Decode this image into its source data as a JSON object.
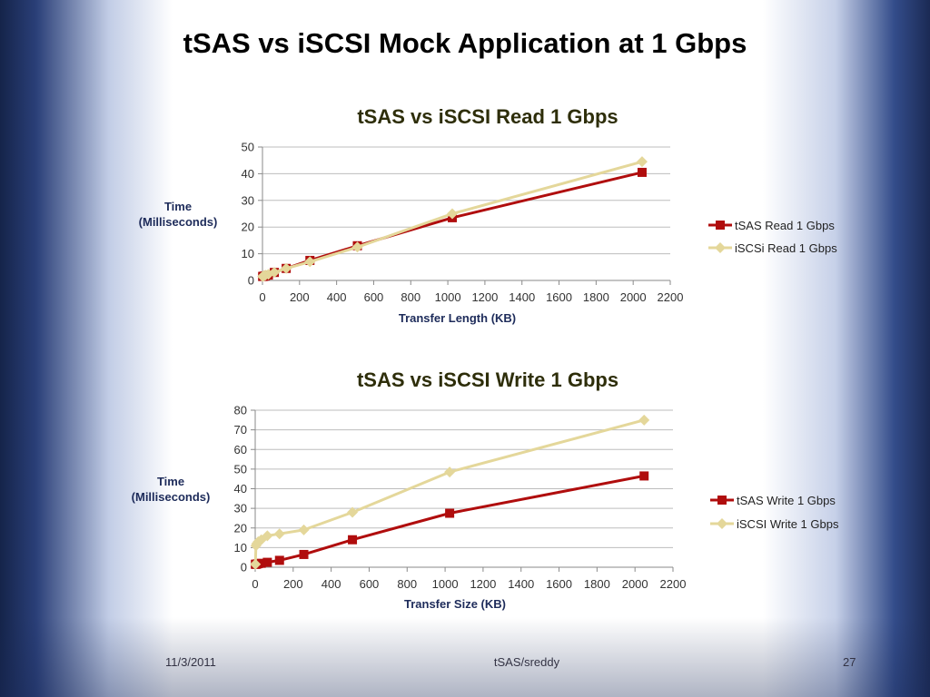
{
  "slide": {
    "title": "tSAS vs iSCSI Mock Application at 1 Gbps",
    "footer_date": "11/3/2011",
    "footer_center": "tSAS/sreddy",
    "footer_page": "27"
  },
  "colors": {
    "tsas": "#b00d0d",
    "iscsi": "#e4d79a",
    "grid": "#bdbdbd",
    "axis": "#8a8a8a"
  },
  "chart_data": [
    {
      "type": "line",
      "title": "tSAS vs iSCSI Read 1 Gbps",
      "xlabel": "Transfer Length (KB)",
      "ylabel": [
        "Time",
        "(Milliseconds)"
      ],
      "xlim": [
        0,
        2200
      ],
      "ylim": [
        0,
        50
      ],
      "xticks": [
        "0",
        "200",
        "400",
        "600",
        "800",
        "1000",
        "1200",
        "1400",
        "1600",
        "1800",
        "2000",
        "2200"
      ],
      "yticks": [
        "0",
        "10",
        "20",
        "30",
        "40",
        "50"
      ],
      "grid": true,
      "legend_position": "right",
      "series": [
        {
          "name": "tSAS Read 1 Gbps",
          "marker": "square",
          "color": "#b00d0d",
          "x": [
            1,
            4,
            8,
            16,
            32,
            64,
            128,
            256,
            512,
            1024,
            2048
          ],
          "y": [
            1.5,
            1.5,
            1.6,
            1.7,
            2,
            3,
            4.5,
            7.5,
            13,
            23.5,
            40.5
          ]
        },
        {
          "name": "iSCSi Read 1 Gbps",
          "marker": "diamond",
          "color": "#e4d79a",
          "x": [
            1,
            4,
            8,
            16,
            32,
            64,
            128,
            256,
            512,
            1024,
            2048
          ],
          "y": [
            1.5,
            1.6,
            1.7,
            2,
            2.3,
            3,
            4.5,
            7,
            12.5,
            25,
            44.5
          ]
        }
      ]
    },
    {
      "type": "line",
      "title": "tSAS vs iSCSI Write 1 Gbps",
      "xlabel": "Transfer Size (KB)",
      "ylabel": [
        "Time",
        "(Milliseconds)"
      ],
      "xlim": [
        0,
        2200
      ],
      "ylim": [
        0,
        80
      ],
      "xticks": [
        "0",
        "200",
        "400",
        "600",
        "800",
        "1000",
        "1200",
        "1400",
        "1600",
        "1800",
        "2000",
        "2200"
      ],
      "yticks": [
        "0",
        "10",
        "20",
        "30",
        "40",
        "50",
        "60",
        "70",
        "80"
      ],
      "grid": true,
      "legend_position": "right",
      "series": [
        {
          "name": "tSAS Write 1 Gbps",
          "marker": "square",
          "color": "#b00d0d",
          "x": [
            1,
            4,
            8,
            16,
            32,
            64,
            128,
            256,
            512,
            1024,
            2048
          ],
          "y": [
            1.5,
            1.5,
            1.6,
            1.8,
            2,
            2.5,
            3.5,
            6.5,
            14,
            27.5,
            46.5
          ]
        },
        {
          "name": "iSCSI Write 1 Gbps",
          "marker": "diamond",
          "color": "#e4d79a",
          "x": [
            1,
            4,
            8,
            16,
            32,
            64,
            128,
            256,
            512,
            1024,
            2048
          ],
          "y": [
            1.5,
            11,
            12,
            13,
            14,
            16,
            17,
            19,
            28,
            48.5,
            75
          ]
        }
      ]
    }
  ]
}
